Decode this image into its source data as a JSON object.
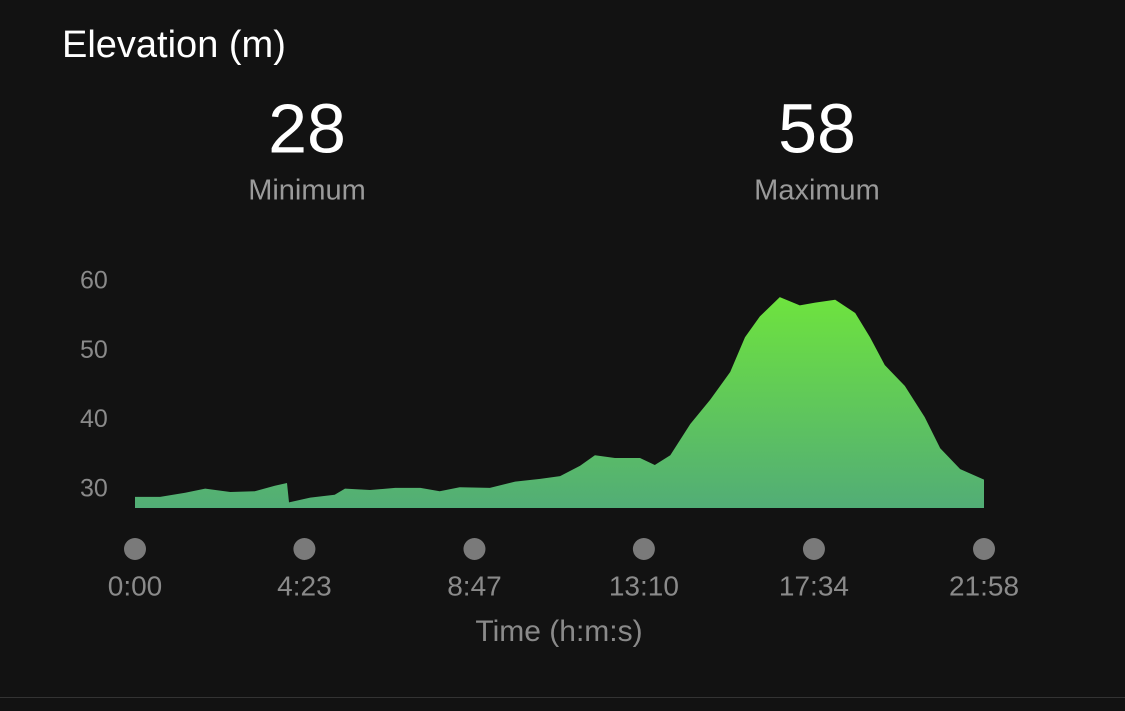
{
  "title": "Elevation (m)",
  "stats": [
    {
      "value": "28",
      "label": "Minimum"
    },
    {
      "value": "58",
      "label": "Maximum"
    }
  ],
  "chart_data": {
    "type": "area",
    "xlabel": "Time (h:m:s)",
    "x": [
      0,
      39,
      78,
      109,
      148,
      186,
      217,
      236,
      239,
      272,
      310,
      326,
      365,
      404,
      443,
      473,
      504,
      551,
      590,
      629,
      660,
      691,
      714,
      745,
      784,
      807,
      831,
      862,
      893,
      924,
      947,
      970,
      1001,
      1032,
      1056,
      1087,
      1118,
      1141,
      1164,
      1195,
      1226,
      1250,
      1281,
      1318
    ],
    "values": [
      29.0,
      29.0,
      29.6,
      30.2,
      29.7,
      29.8,
      30.6,
      31.0,
      28.2,
      28.9,
      29.3,
      30.2,
      30.0,
      30.3,
      30.3,
      29.8,
      30.4,
      30.3,
      31.2,
      31.6,
      32.0,
      33.5,
      35.0,
      34.6,
      34.6,
      33.6,
      35.0,
      39.5,
      43.0,
      47.0,
      52.0,
      55.0,
      57.8,
      56.6,
      57.0,
      57.4,
      55.5,
      52.0,
      48.0,
      45.0,
      40.5,
      36.0,
      33.0,
      31.5
    ],
    "colors": [
      "#6ee33e",
      "#52ad76"
    ],
    "xlim": [
      0,
      1318
    ],
    "ylim": [
      27.4,
      61.7
    ],
    "xticks": [
      {
        "value": 0,
        "label": "0:00"
      },
      {
        "value": 263,
        "label": "4:23"
      },
      {
        "value": 527,
        "label": "8:47"
      },
      {
        "value": 790,
        "label": "13:10"
      },
      {
        "value": 1054,
        "label": "17:34"
      },
      {
        "value": 1318,
        "label": "21:58"
      }
    ],
    "yticks": [
      30,
      40,
      50,
      60
    ]
  }
}
